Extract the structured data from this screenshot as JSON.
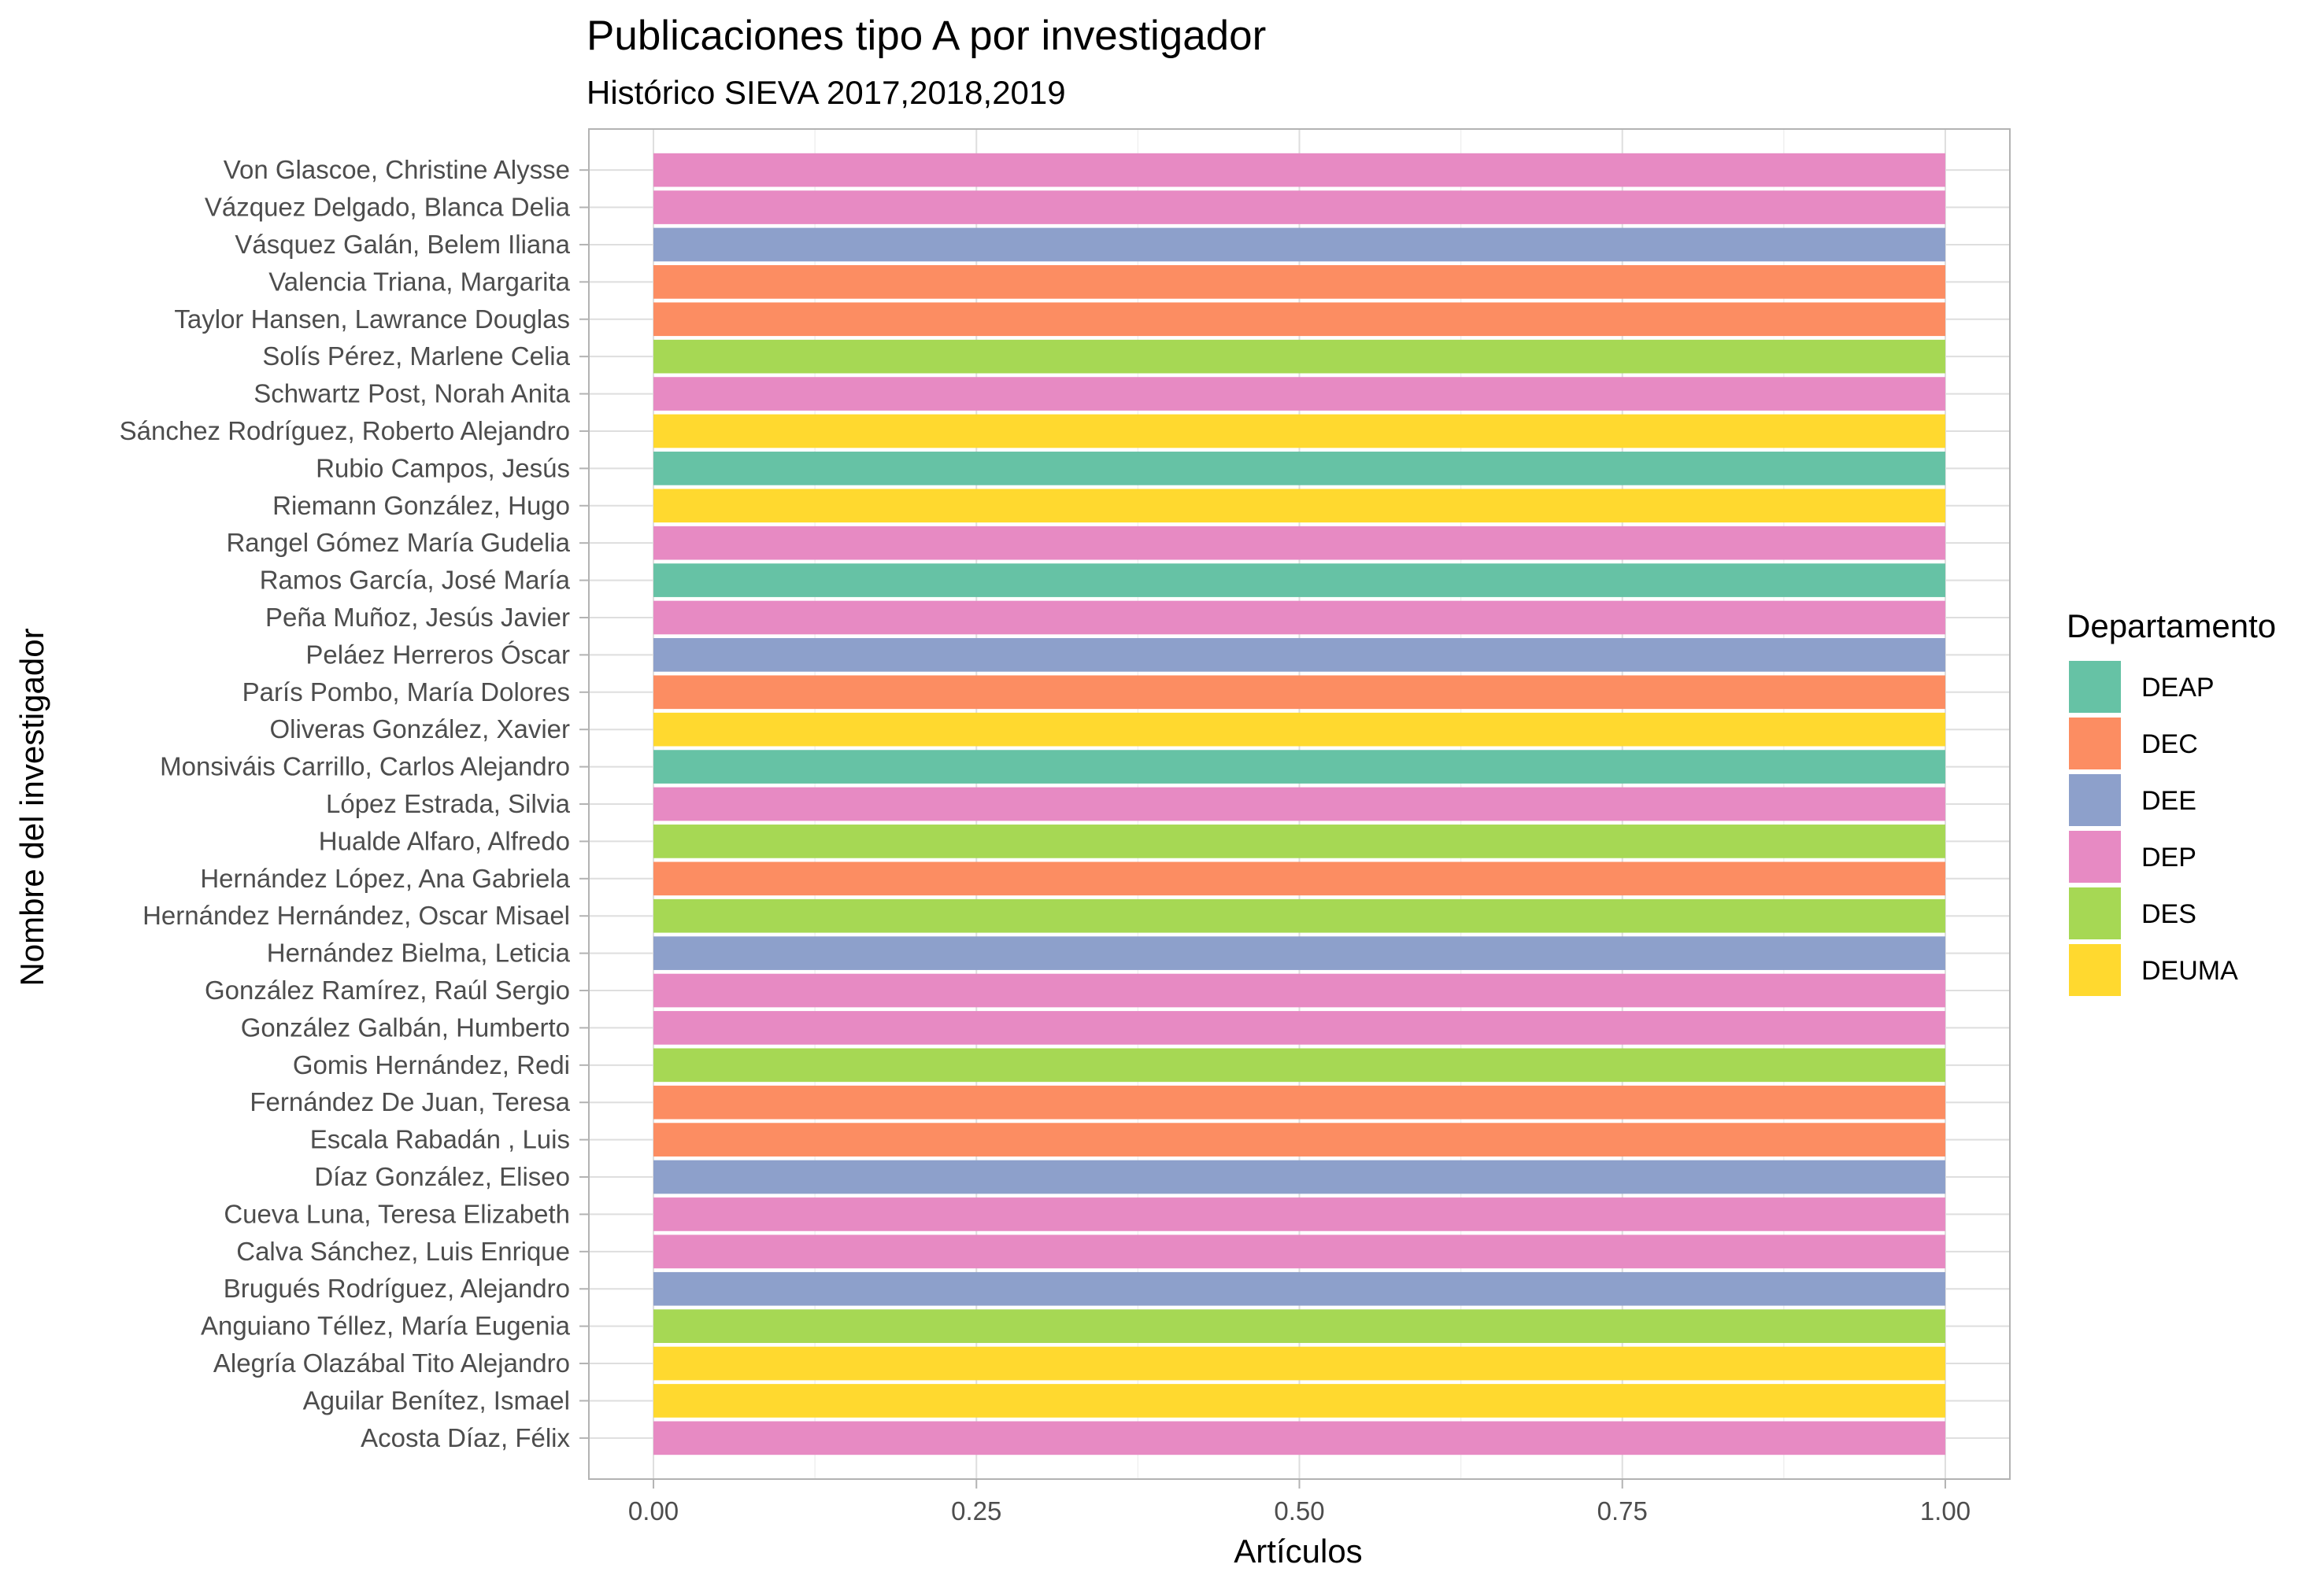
{
  "chart_data": {
    "type": "bar",
    "orientation": "horizontal",
    "title": "Publicaciones tipo A por investigador",
    "subtitle": "Histórico SIEVA 2017,2018,2019",
    "xlabel": "Artículos",
    "ylabel": "Nombre del investigador",
    "xlim": [
      0,
      1.05
    ],
    "x_ticks": [
      "0.00",
      "0.25",
      "0.50",
      "0.75",
      "1.00"
    ],
    "x_tick_values": [
      0,
      0.25,
      0.5,
      0.75,
      1.0
    ],
    "grid": true,
    "legend": {
      "title": "Departamento",
      "placement": "right",
      "entries": [
        {
          "label": "DEAP",
          "color": "#66c2a5"
        },
        {
          "label": "DEC",
          "color": "#fc8d62"
        },
        {
          "label": "DEE",
          "color": "#8da0cb"
        },
        {
          "label": "DEP",
          "color": "#e78ac3"
        },
        {
          "label": "DES",
          "color": "#a6d854"
        },
        {
          "label": "DEUMA",
          "color": "#ffd92f"
        }
      ]
    },
    "categories": [
      "Von Glascoe, Christine Alysse",
      "Vázquez Delgado, Blanca Delia",
      "Vásquez Galán, Belem Iliana",
      "Valencia Triana, Margarita",
      "Taylor Hansen, Lawrance Douglas",
      "Solís Pérez, Marlene Celia",
      "Schwartz Post, Norah Anita",
      "Sánchez Rodríguez, Roberto Alejandro",
      "Rubio Campos, Jesús",
      "Riemann González, Hugo",
      "Rangel Gómez María Gudelia",
      "Ramos García, José María",
      "Peña Muñoz, Jesús Javier",
      "Peláez Herreros Óscar",
      "París Pombo, María Dolores",
      "Oliveras González, Xavier",
      "Monsiváis Carrillo, Carlos Alejandro",
      "López Estrada, Silvia",
      "Hualde Alfaro, Alfredo",
      "Hernández López, Ana Gabriela",
      "Hernández Hernández, Oscar Misael",
      "Hernández Bielma, Leticia",
      "González Ramírez, Raúl Sergio",
      "González Galbán, Humberto",
      "Gomis Hernández, Redi",
      "Fernández De Juan, Teresa",
      "Escala Rabadán , Luis",
      "Díaz González, Eliseo",
      "Cueva Luna, Teresa Elizabeth",
      "Calva Sánchez, Luis Enrique",
      "Brugués Rodríguez, Alejandro",
      "Anguiano Téllez, María Eugenia",
      "Alegría Olazábal Tito Alejandro",
      "Aguilar Benítez, Ismael",
      "Acosta Díaz, Félix"
    ],
    "values": [
      1,
      1,
      1,
      1,
      1,
      1,
      1,
      1,
      1,
      1,
      1,
      1,
      1,
      1,
      1,
      1,
      1,
      1,
      1,
      1,
      1,
      1,
      1,
      1,
      1,
      1,
      1,
      1,
      1,
      1,
      1,
      1,
      1,
      1,
      1
    ],
    "departments": [
      "DEP",
      "DEP",
      "DEE",
      "DEC",
      "DEC",
      "DES",
      "DEP",
      "DEUMA",
      "DEAP",
      "DEUMA",
      "DEP",
      "DEAP",
      "DEP",
      "DEE",
      "DEC",
      "DEUMA",
      "DEAP",
      "DEP",
      "DES",
      "DEC",
      "DES",
      "DEE",
      "DEP",
      "DEP",
      "DES",
      "DEC",
      "DEC",
      "DEE",
      "DEP",
      "DEP",
      "DEE",
      "DES",
      "DEUMA",
      "DEUMA",
      "DEP"
    ]
  }
}
